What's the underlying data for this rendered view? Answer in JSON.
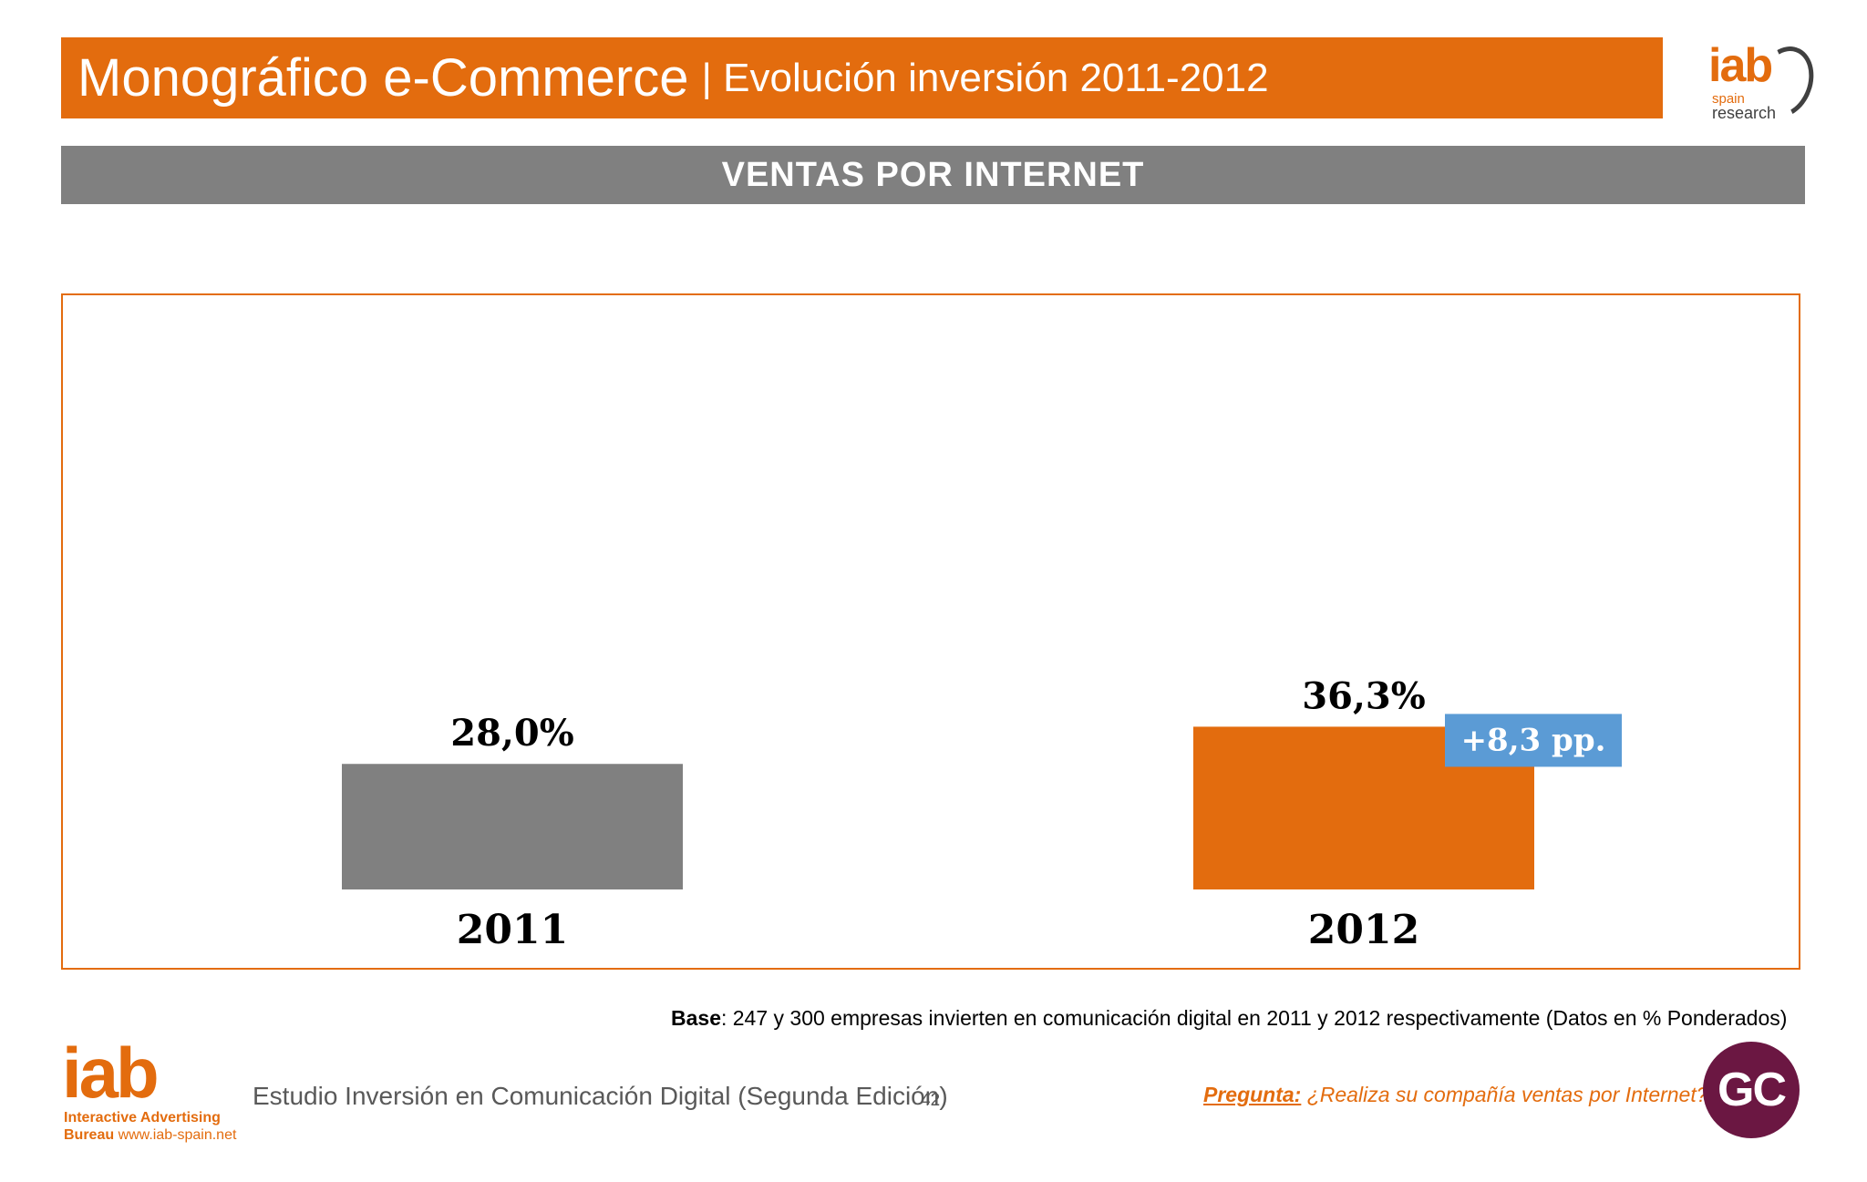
{
  "header": {
    "title": "Monográfico e-Commerce",
    "subtitle": "| Evolución inversión 2011-2012"
  },
  "logo_top": {
    "iab": "iab",
    "spain": "spain",
    "research": "research"
  },
  "section": {
    "title": "VENTAS POR INTERNET"
  },
  "chart_data": {
    "type": "bar",
    "categories": [
      "2011",
      "2012"
    ],
    "values": [
      28.0,
      36.3
    ],
    "data_labels": [
      "28,0%",
      "36,3%"
    ],
    "bar_colors": [
      "#808080",
      "#e36c0e"
    ],
    "ylim": [
      0,
      100
    ],
    "annotation": {
      "text": "+8,3 pp.",
      "color": "#5b9bd5"
    },
    "title": "",
    "xlabel": "",
    "ylabel": ""
  },
  "footer": {
    "base_label": "Base",
    "base_text": ": 247 y 300 empresas invierten en comunicación digital en 2011 y 2012 respectivamente (Datos en % Ponderados)",
    "study": "Estudio Inversión en Comunicación Digital (Segunda Edición)",
    "page": "42",
    "question_label": "Pregunta:",
    "question_text": " ¿Realiza su compañía ventas por Internet?",
    "logo_iab": "iab",
    "logo_line1": "Interactive Advertising",
    "logo_line2_bold": "Bureau",
    "logo_line2_url": " www.iab-spain.net",
    "badge": "GC"
  },
  "colors": {
    "accent": "#e36c0e",
    "gray": "#808080",
    "blue": "#5b9bd5",
    "badge": "#6b1742"
  }
}
